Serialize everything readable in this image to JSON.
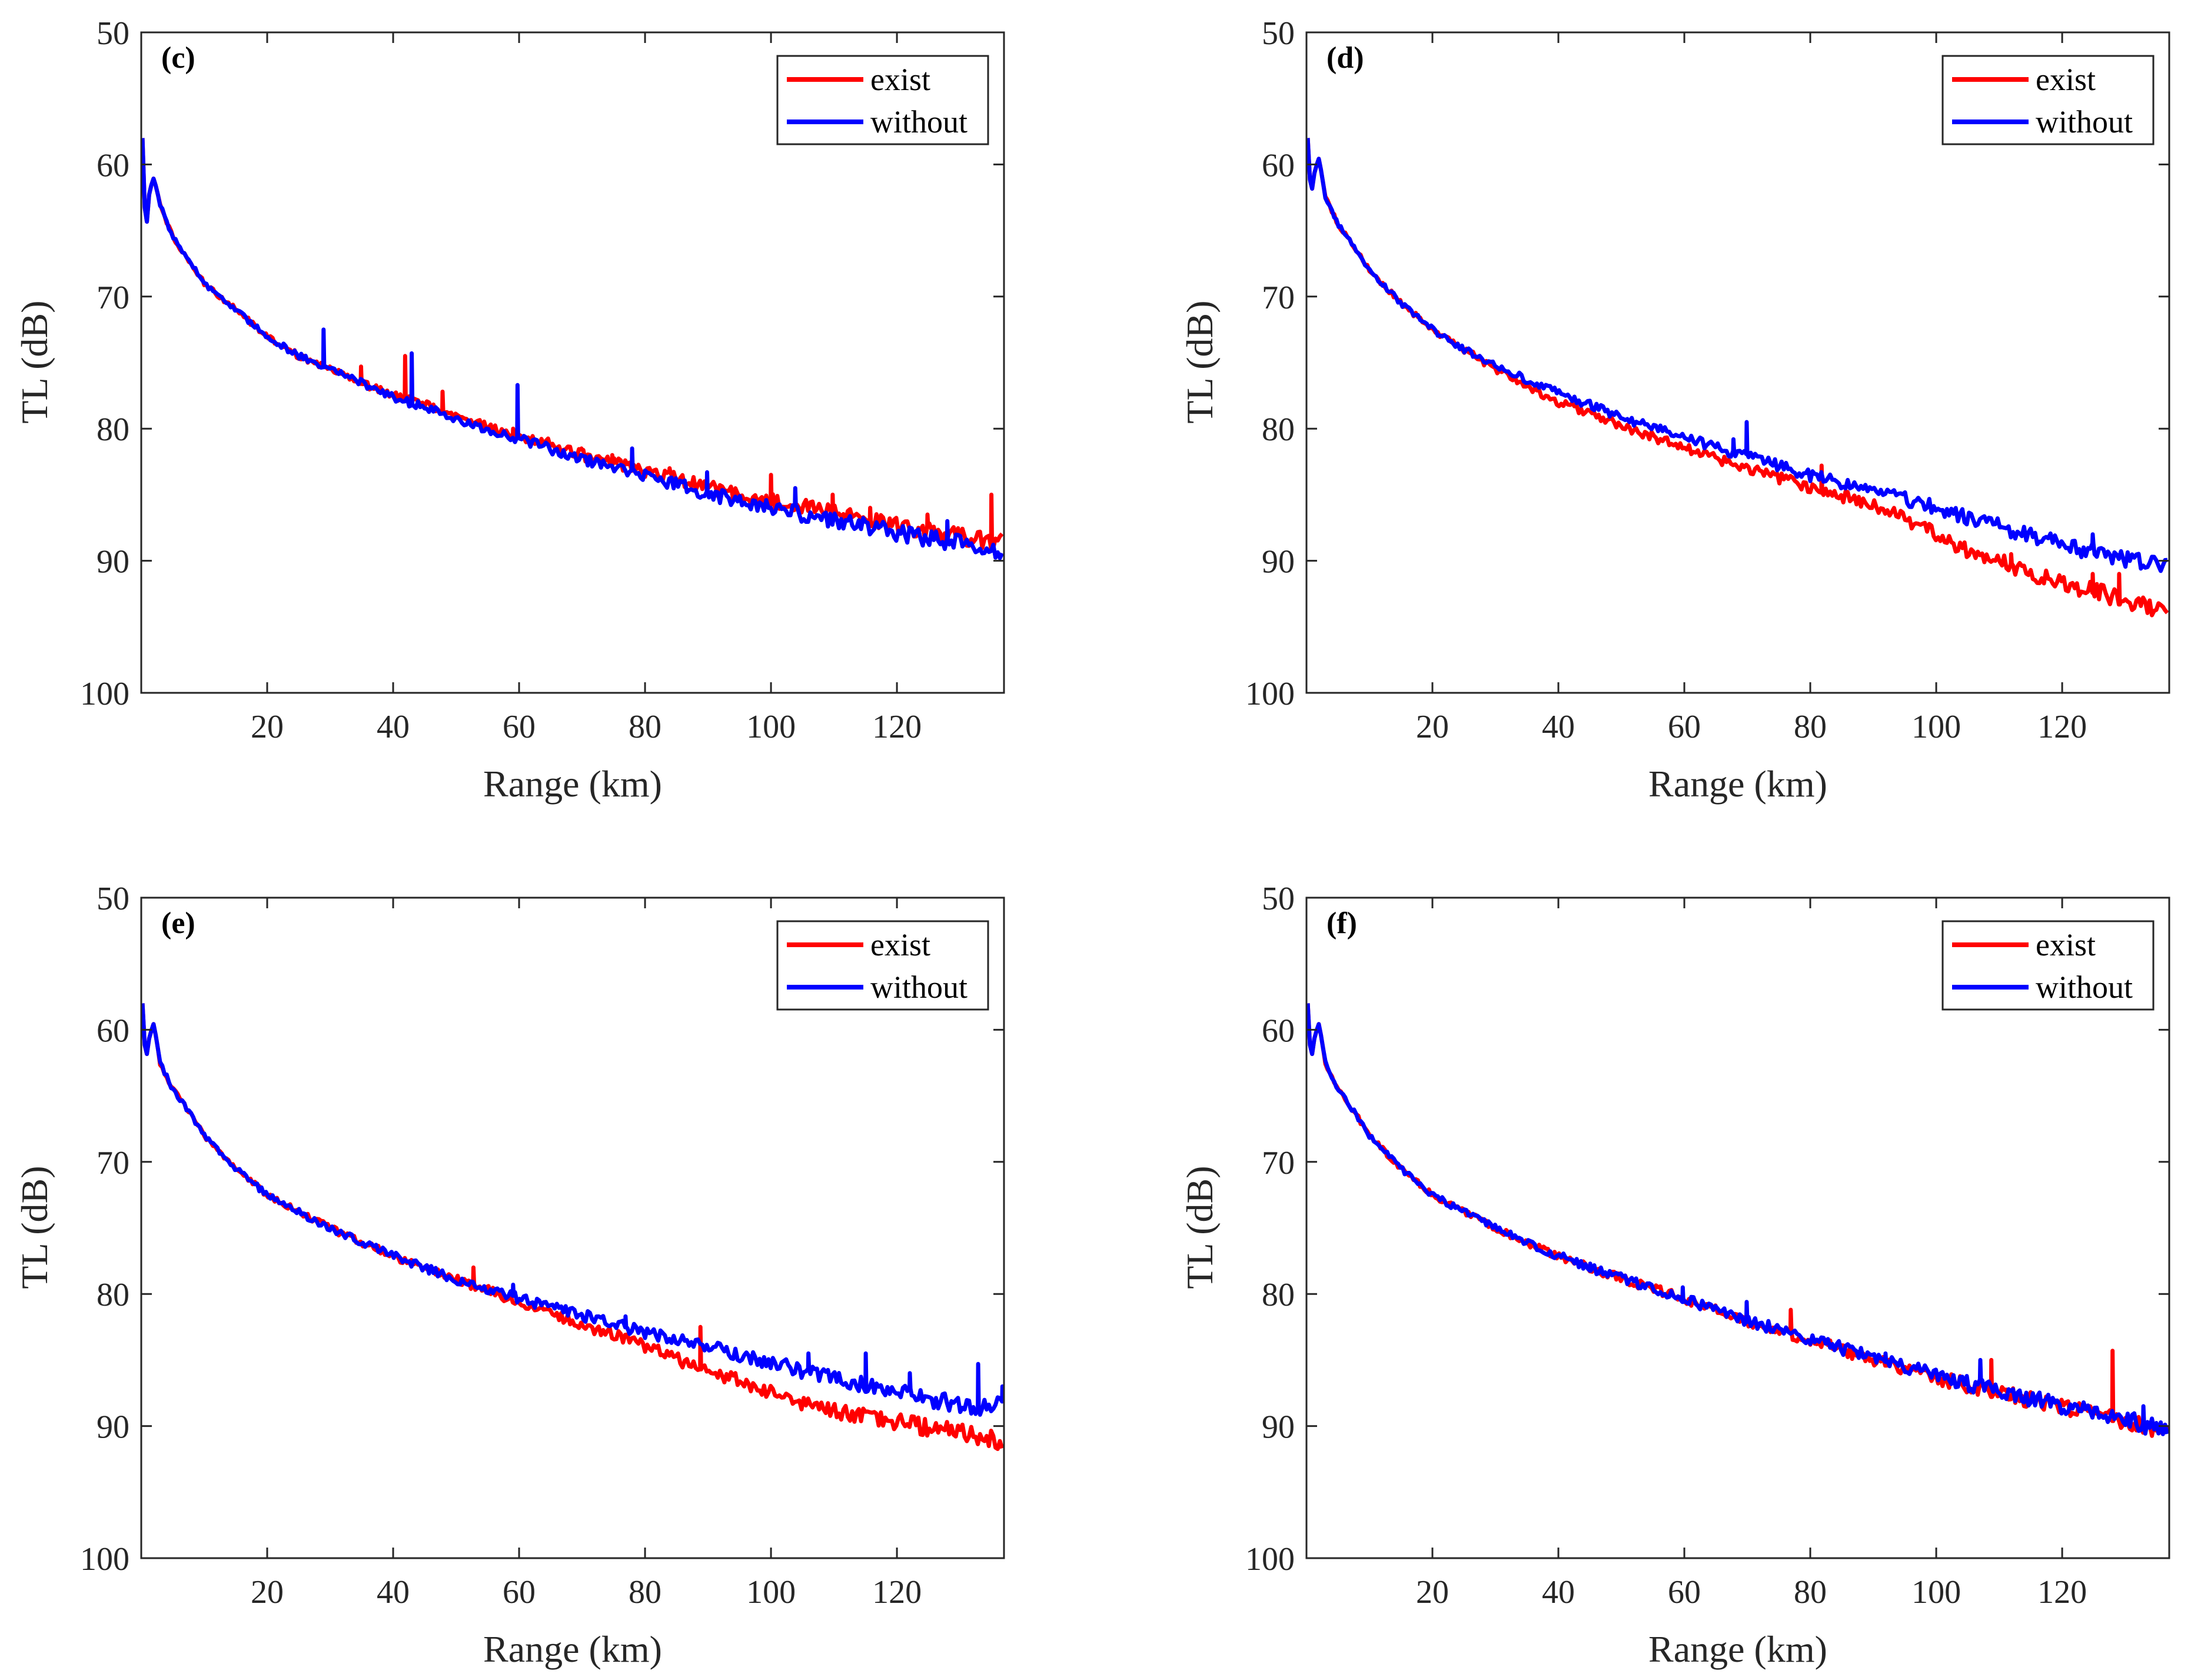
{
  "chart_data": [
    {
      "type": "line",
      "panel_label": "(c)",
      "xlabel": "Range (km)",
      "ylabel": "TL (dB)",
      "xlim": [
        0,
        137
      ],
      "ylim": [
        50,
        100
      ],
      "y_reversed": true,
      "xticks": [
        20,
        40,
        60,
        80,
        100,
        120
      ],
      "yticks": [
        50,
        60,
        70,
        80,
        90,
        100
      ],
      "grid": false,
      "legend_position": "top-right",
      "series": [
        {
          "name": "exist",
          "color": "#ff0000",
          "x": [
            0.2,
            0.7,
            1.3,
            2,
            3,
            5,
            8,
            10,
            15,
            20,
            25,
            30,
            35,
            40,
            45,
            50,
            55,
            60,
            65,
            70,
            75,
            80,
            85,
            90,
            95,
            100,
            105,
            110,
            115,
            120,
            125,
            130,
            134,
            137
          ],
          "y": [
            58,
            65.5,
            62,
            61,
            63,
            65.5,
            67.5,
            69,
            71,
            73,
            74.5,
            75.5,
            76.5,
            77.5,
            78.2,
            79,
            79.8,
            80.5,
            81.2,
            82,
            82.6,
            83.2,
            83.8,
            84.4,
            85,
            85.5,
            85.8,
            86.4,
            86.9,
            87.3,
            87.8,
            88.2,
            88.4,
            88.6
          ],
          "spikes": [
            [
              35,
              75.3
            ],
            [
              42,
              74.5
            ],
            [
              48,
              77.2
            ],
            [
              59,
              80
            ],
            [
              70,
              81.5
            ],
            [
              75,
              82
            ],
            [
              84,
              83
            ],
            [
              100,
              83.5
            ],
            [
              110,
              85
            ],
            [
              116,
              86
            ],
            [
              125,
              86.5
            ],
            [
              135,
              85
            ]
          ]
        },
        {
          "name": "without",
          "color": "#0000ff",
          "x": [
            0.2,
            0.7,
            1.3,
            2,
            3,
            5,
            8,
            10,
            15,
            20,
            25,
            30,
            35,
            40,
            45,
            50,
            55,
            60,
            65,
            70,
            75,
            80,
            85,
            90,
            95,
            100,
            105,
            110,
            115,
            120,
            125,
            130,
            134,
            137
          ],
          "y": [
            58,
            65.5,
            62,
            61,
            63,
            65.5,
            67.5,
            69,
            71,
            73,
            74.5,
            75.5,
            76.5,
            77.6,
            78.4,
            79.2,
            80,
            80.8,
            81.5,
            82.3,
            83,
            83.6,
            84.2,
            84.9,
            85.5,
            86,
            86.5,
            87,
            87.4,
            87.9,
            88.3,
            88.7,
            89,
            89.2
          ],
          "spikes": [
            [
              29,
              72.5
            ],
            [
              43,
              74.3
            ],
            [
              60,
              76.7
            ],
            [
              78,
              81.5
            ],
            [
              90,
              83.3
            ],
            [
              104,
              84.5
            ],
            [
              128,
              87
            ]
          ]
        }
      ]
    },
    {
      "type": "line",
      "panel_label": "(d)",
      "xlabel": "Range (km)",
      "ylabel": "TL (dB)",
      "xlim": [
        0,
        137
      ],
      "ylim": [
        50,
        100
      ],
      "y_reversed": true,
      "xticks": [
        20,
        40,
        60,
        80,
        100,
        120
      ],
      "yticks": [
        50,
        60,
        70,
        80,
        90,
        100
      ],
      "grid": false,
      "legend_position": "top-right",
      "series": [
        {
          "name": "exist",
          "color": "#ff0000",
          "x": [
            0.2,
            0.7,
            1.3,
            2,
            3,
            5,
            8,
            10,
            15,
            20,
            25,
            30,
            35,
            40,
            45,
            50,
            55,
            60,
            65,
            70,
            75,
            80,
            85,
            90,
            95,
            100,
            105,
            110,
            115,
            120,
            125,
            130,
            134,
            137
          ],
          "y": [
            58,
            62.5,
            60.5,
            59.5,
            62.5,
            64.5,
            66.5,
            68,
            70.5,
            72.5,
            74,
            75.5,
            76.8,
            78,
            78.9,
            79.8,
            80.6,
            81.4,
            82.2,
            83,
            83.7,
            84.4,
            85.1,
            85.9,
            86.8,
            88,
            89.2,
            90,
            90.9,
            91.7,
            92.3,
            93,
            93.6,
            94.1
          ],
          "spikes": [
            [
              82,
              82.8
            ],
            [
              112,
              89.5
            ],
            [
              125,
              91
            ],
            [
              129,
              91
            ]
          ]
        },
        {
          "name": "without",
          "color": "#0000ff",
          "x": [
            0.2,
            0.7,
            1.3,
            2,
            3,
            5,
            8,
            10,
            15,
            20,
            25,
            30,
            35,
            40,
            45,
            50,
            55,
            60,
            65,
            70,
            75,
            80,
            85,
            90,
            95,
            100,
            105,
            110,
            115,
            120,
            125,
            130,
            134,
            137
          ],
          "y": [
            58,
            62.5,
            60.5,
            59.5,
            62.5,
            64.5,
            66.5,
            68,
            70.5,
            72.5,
            74,
            75.2,
            76.3,
            77.3,
            78.2,
            79.1,
            79.9,
            80.7,
            81.4,
            82.1,
            82.8,
            83.5,
            84.1,
            84.7,
            85.3,
            86,
            86.7,
            87.4,
            88.1,
            88.8,
            89.3,
            89.8,
            90.3,
            90.6
          ],
          "spikes": [
            [
              68,
              80.8
            ],
            [
              70,
              79.5
            ],
            [
              125,
              88
            ]
          ]
        }
      ]
    },
    {
      "type": "line",
      "panel_label": "(e)",
      "xlabel": "Range (km)",
      "ylabel": "TL (dB)",
      "xlim": [
        0,
        137
      ],
      "ylim": [
        50,
        100
      ],
      "y_reversed": true,
      "xticks": [
        20,
        40,
        60,
        80,
        100,
        120
      ],
      "yticks": [
        50,
        60,
        70,
        80,
        90,
        100
      ],
      "grid": false,
      "legend_position": "top-right",
      "series": [
        {
          "name": "exist",
          "color": "#ff0000",
          "x": [
            0.2,
            0.7,
            1.3,
            2,
            3,
            5,
            8,
            10,
            15,
            20,
            25,
            30,
            35,
            40,
            45,
            50,
            55,
            60,
            65,
            70,
            75,
            80,
            85,
            90,
            95,
            100,
            105,
            110,
            115,
            120,
            125,
            130,
            134,
            137
          ],
          "y": [
            58,
            62.5,
            60.5,
            59.5,
            62.5,
            64.5,
            66.5,
            68,
            70.5,
            72.5,
            73.8,
            75,
            76.1,
            77.1,
            78,
            78.9,
            79.7,
            80.6,
            81.4,
            82.3,
            83.1,
            84,
            84.9,
            85.8,
            86.6,
            87.4,
            88.2,
            88.8,
            89.3,
            89.7,
            90.1,
            90.5,
            90.9,
            91.3
          ],
          "spikes": [
            [
              53,
              78
            ],
            [
              89,
              82.5
            ]
          ]
        },
        {
          "name": "without",
          "color": "#0000ff",
          "x": [
            0.2,
            0.7,
            1.3,
            2,
            3,
            5,
            8,
            10,
            15,
            20,
            25,
            30,
            35,
            40,
            45,
            50,
            55,
            60,
            65,
            70,
            75,
            80,
            85,
            90,
            95,
            100,
            105,
            110,
            115,
            120,
            125,
            130,
            134,
            137
          ],
          "y": [
            58,
            62.5,
            60.5,
            59.5,
            62.5,
            64.5,
            66.5,
            68,
            70.5,
            72.5,
            73.8,
            75,
            76.1,
            77.1,
            78,
            78.9,
            79.6,
            80.3,
            81,
            81.6,
            82.3,
            82.9,
            83.4,
            84,
            84.6,
            85.2,
            85.8,
            86.4,
            86.9,
            87.4,
            87.9,
            88.4,
            88.7,
            88.2
          ],
          "spikes": [
            [
              59,
              79.3
            ],
            [
              70,
              81.5
            ],
            [
              77,
              81.7
            ],
            [
              106,
              84.5
            ],
            [
              115,
              84.5
            ],
            [
              122,
              86
            ],
            [
              133,
              85.3
            ],
            [
              137,
              87
            ]
          ]
        }
      ]
    },
    {
      "type": "line",
      "panel_label": "(f)",
      "xlabel": "Range (km)",
      "ylabel": "TL (dB)",
      "xlim": [
        0,
        137
      ],
      "ylim": [
        50,
        100
      ],
      "y_reversed": true,
      "xticks": [
        20,
        40,
        60,
        80,
        100,
        120
      ],
      "yticks": [
        50,
        60,
        70,
        80,
        90,
        100
      ],
      "grid": false,
      "legend_position": "top-right",
      "series": [
        {
          "name": "exist",
          "color": "#ff0000",
          "x": [
            0.2,
            0.7,
            1.3,
            2,
            3,
            5,
            8,
            10,
            15,
            20,
            25,
            30,
            35,
            40,
            45,
            50,
            55,
            60,
            65,
            70,
            75,
            80,
            85,
            90,
            95,
            100,
            105,
            110,
            115,
            120,
            125,
            130,
            134,
            137
          ],
          "y": [
            58,
            62.5,
            60.5,
            59.5,
            62.5,
            64.5,
            66.5,
            68,
            70.5,
            72.5,
            73.8,
            75,
            76.1,
            77.1,
            78,
            78.8,
            79.6,
            80.4,
            81.2,
            82,
            82.8,
            83.5,
            84.2,
            84.9,
            85.6,
            86.3,
            86.9,
            87.5,
            88,
            88.6,
            89.1,
            89.7,
            90.2,
            90.4
          ],
          "spikes": [
            [
              77,
              81.2
            ],
            [
              109,
              85
            ],
            [
              128,
              84.3
            ]
          ]
        },
        {
          "name": "without",
          "color": "#0000ff",
          "x": [
            0.2,
            0.7,
            1.3,
            2,
            3,
            5,
            8,
            10,
            15,
            20,
            25,
            30,
            35,
            40,
            45,
            50,
            55,
            60,
            65,
            70,
            75,
            80,
            85,
            90,
            95,
            100,
            105,
            110,
            115,
            120,
            125,
            130,
            134,
            137
          ],
          "y": [
            58,
            62.5,
            60.5,
            59.5,
            62.5,
            64.5,
            66.5,
            68,
            70.5,
            72.5,
            73.8,
            75,
            76.1,
            77.1,
            78,
            78.8,
            79.6,
            80.4,
            81.2,
            82,
            82.7,
            83.4,
            84.1,
            84.8,
            85.5,
            86.2,
            86.8,
            87.4,
            87.9,
            88.5,
            89,
            89.5,
            90,
            90.2
          ],
          "spikes": [
            [
              45,
              77.7
            ],
            [
              60,
              79.5
            ],
            [
              70,
              80.6
            ],
            [
              92,
              84.5
            ],
            [
              107,
              85
            ],
            [
              133,
              88.5
            ]
          ]
        }
      ]
    }
  ]
}
